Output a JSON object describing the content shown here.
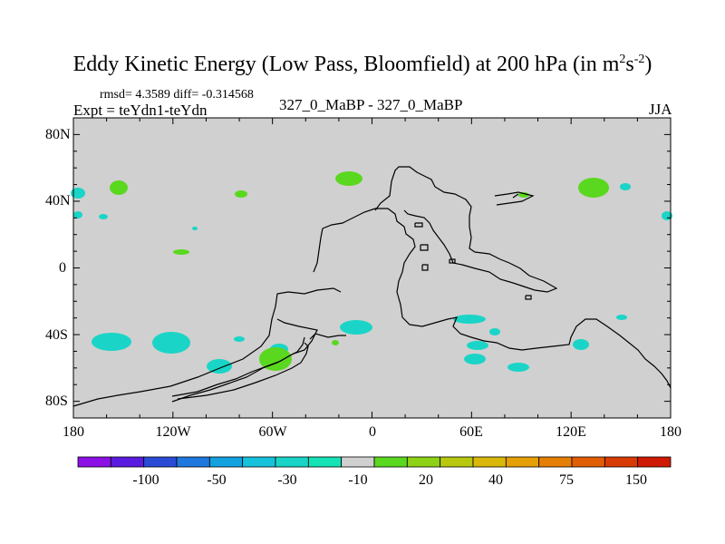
{
  "plot": {
    "title": "Eddy Kinetic Energy (Low Pass, Bloomfield) at 200 hPa (in m",
    "title_sup1": "2",
    "title_mid": "s",
    "title_sup2": "-2",
    "title_end": ")",
    "stats": "rmsd= 4.3589 diff= -0.314568",
    "expt": "Expt = teYdn1-teYdn",
    "center_label": "327_0_MaBP - 327_0_MaBP",
    "season": "JJA",
    "lat_labels": [
      "80N",
      "40N",
      "0",
      "40S",
      "80S"
    ],
    "lon_labels": [
      "180",
      "120W",
      "60W",
      "0",
      "60E",
      "120E",
      "180"
    ]
  },
  "colorbar": {
    "colors": [
      "#8b10e6",
      "#5a1be0",
      "#2a4bd6",
      "#1f78dd",
      "#13a1e0",
      "#16c2dc",
      "#1ad5c7",
      "#16e3b5",
      "#d0d0d0",
      "#5ad81f",
      "#8ed215",
      "#b7c80e",
      "#d9b80b",
      "#e5a008",
      "#e57f06",
      "#e05d05",
      "#d83a04",
      "#cf1a03"
    ],
    "labels": [
      "-100",
      "-50",
      "-30",
      "-10",
      "20",
      "40",
      "75",
      "150"
    ]
  },
  "map_colors": {
    "background": "#d0d0d0",
    "cyan": "#1ad5c7",
    "green": "#5ad81f",
    "coast": "#000000"
  }
}
